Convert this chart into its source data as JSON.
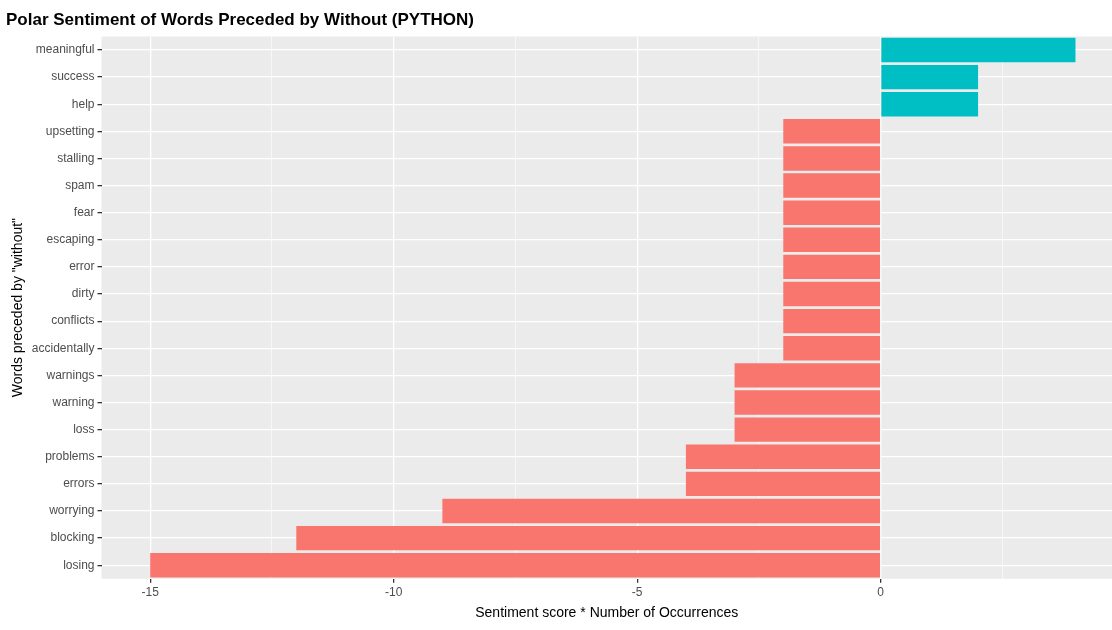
{
  "chart_data": {
    "type": "bar",
    "orientation": "horizontal",
    "title": "Polar Sentiment of Words Preceded by Without (PYTHON)",
    "xlabel": "Sentiment score * Number of Occurrences",
    "ylabel": "Words preceded by \"without\"",
    "categories": [
      "meaningful",
      "success",
      "help",
      "upsetting",
      "stalling",
      "spam",
      "fear",
      "escaping",
      "error",
      "dirty",
      "conflicts",
      "accidentally",
      "warnings",
      "warning",
      "loss",
      "problems",
      "errors",
      "worrying",
      "blocking",
      "losing"
    ],
    "values": [
      4,
      2,
      2,
      -2,
      -2,
      -2,
      -2,
      -2,
      -2,
      -2,
      -2,
      -2,
      -3,
      -3,
      -3,
      -4,
      -4,
      -9,
      -12,
      -15
    ],
    "colors": [
      "#00bfc4",
      "#00bfc4",
      "#00bfc4",
      "#f8766d",
      "#f8766d",
      "#f8766d",
      "#f8766d",
      "#f8766d",
      "#f8766d",
      "#f8766d",
      "#f8766d",
      "#f8766d",
      "#f8766d",
      "#f8766d",
      "#f8766d",
      "#f8766d",
      "#f8766d",
      "#f8766d",
      "#f8766d",
      "#f8766d"
    ],
    "xlim": [
      -16,
      4.75
    ],
    "xticks": [
      -15,
      {
        "value": -12.5,
        "label": null
      },
      -10,
      {
        "value": -7.5,
        "label": null
      },
      -5,
      {
        "value": -2.5,
        "label": null
      },
      0,
      {
        "value": 2.5,
        "label": null
      }
    ],
    "grid": true,
    "legend": false
  }
}
